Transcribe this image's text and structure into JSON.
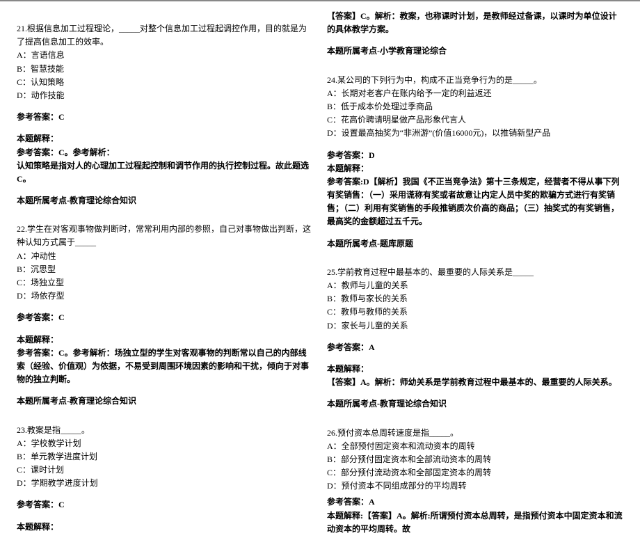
{
  "left": {
    "q21": {
      "stem": "21.根据信息加工过程理论，_____对整个信息加工过程起调控作用，目的就是为了提高信息加工的效率。",
      "a": "A：言语信息",
      "b": "B：智慧技能",
      "c": "C：认知策略",
      "d": "D：动作技能",
      "ans_label": "参考答案：C",
      "exp_header": "本题解释：",
      "exp_line1": "参考答案：C。参考解析：",
      "exp_line2": "认知策略是指对人的心理加工过程起控制和调节作用的执行控制过程。故此题选 C。",
      "topic": "本题所属考点-教育理论综合知识"
    },
    "q22": {
      "stem": "22.学生在对客观事物做判断时，常常利用内部的参照，自己对事物做出判断，这种认知方式属于_____",
      "a": "A：冲动性",
      "b": "B：沉思型",
      "c": "C：场独立型",
      "d": "D：场依存型",
      "ans_label": "参考答案：C",
      "exp_header": "本题解释：",
      "exp_line1": "参考答案：C。参考解析：场独立型的学生对客观事物的判断常以自己的内部线索（经验、价值观）为依据，不易受到周围环境因素的影响和干扰，倾向于对事物的独立判断。",
      "topic": "本题所属考点-教育理论综合知识"
    },
    "q23": {
      "stem": "23.教案是指_____。",
      "a": "A：学校教学计划",
      "b": "B：单元教学进度计划",
      "c": "C：课时计划",
      "d": "D：学期教学进度计划",
      "ans_label": "参考答案：C",
      "exp_header": "本题解释："
    }
  },
  "right": {
    "cont23": {
      "exp_line": "【答案】C。解析：教案，也称课时计划，是教师经过备课，以课时为单位设计的具体教学方案。",
      "topic": "本题所属考点-小学教育理论综合"
    },
    "q24": {
      "stem": "24.某公司的下列行为中，构成不正当竞争行为的是_____。",
      "a": "A：长期对老客户在账内给予一定的利益返还",
      "b": "B：低于成本价处理过季商品",
      "c": "C：花高价聘请明星做产品形象代言人",
      "d": "D：设置最高抽奖为“非洲游”(价值16000元)，以推销新型产品",
      "ans_label": "参考答案：D",
      "exp_header": "本题解释：",
      "exp_line": "参考答案:D【解析】我国《不正当竞争法》第十三条规定，经营者不得从事下列有奖销售：（一）采用谎称有奖或者故意让内定人员中奖的欺骗方式进行有奖销售；（二）利用有奖销售的手段推销质次价高的商品；（三）抽奖式的有奖销售，最高奖的金额超过五千元。",
      "topic": "本题所属考点-题库原题"
    },
    "q25": {
      "stem": "25.学前教育过程中最基本的、最重要的人际关系是_____",
      "a": "A：教师与儿童的关系",
      "b": "B：教师与家长的关系",
      "c": "C：教师与教师的关系",
      "d": "D：家长与儿童的关系",
      "ans_label": "参考答案：A",
      "exp_header": "本题解释：",
      "exp_line": "【答案】A。解析：师幼关系是学前教育过程中最基本的、最重要的人际关系。",
      "topic": "本题所属考点-教育理论综合知识"
    },
    "q26": {
      "stem": "26.预付资本总周转速度是指_____。",
      "a": "A：全部预付固定资本和流动资本的周转",
      "b": "B：部分预付固定资本和全部流动资本的周转",
      "c": "C：部分预付流动资本和全部固定资本的周转",
      "d": "D：预付资本不同组成部分的平均周转",
      "ans_label": "参考答案：A",
      "exp_line": "本题解释:【答案】A。解析:所谓预付资本总周转，是指预付资本中固定资本和流动资本的平均周转。故"
    }
  }
}
